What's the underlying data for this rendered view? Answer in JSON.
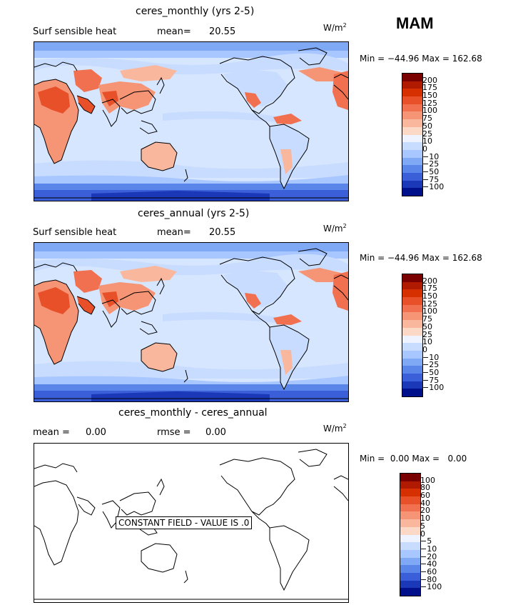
{
  "season": "MAM",
  "units": "W/m",
  "units_exp": "2",
  "panels": [
    {
      "title": "ceres_monthly (yrs 2-5)",
      "left_label": "Surf sensible heat",
      "stat_label": "mean=",
      "stat_value": "20.55",
      "min_label": "Min =",
      "min_value": "−44.96",
      "max_label": "Max =",
      "max_value": "162.68",
      "constant": false
    },
    {
      "title": "ceres_annual (yrs 2-5)",
      "left_label": "Surf sensible heat",
      "stat_label": "mean=",
      "stat_value": "20.55",
      "min_label": "Min =",
      "min_value": "−44.96",
      "max_label": "Max =",
      "max_value": "162.68",
      "constant": false
    },
    {
      "title": "ceres_monthly - ceres_annual",
      "left_label": "mean =",
      "left_value": "0.00",
      "stat_label": "rmse =",
      "stat_value": "0.00",
      "min_label": "Min =",
      "min_value": "0.00",
      "max_label": "Max =",
      "max_value": "0.00",
      "constant": true,
      "constant_text": "CONSTANT FIELD - VALUE IS .0"
    }
  ],
  "colorbar_top": {
    "ticks": [
      "200",
      "175",
      "150",
      "125",
      "100",
      "75",
      "50",
      "25",
      "10",
      "0",
      "−10",
      "−25",
      "−50",
      "−75",
      "−100"
    ],
    "colors": [
      "#7a0000",
      "#b01a00",
      "#d63000",
      "#e8502a",
      "#f07050",
      "#f59575",
      "#f9b89e",
      "#fcd9c6",
      "#eef3ff",
      "#c8dcff",
      "#a8c6ff",
      "#7fa8f5",
      "#5a86ea",
      "#3a5fd8",
      "#1a38b8",
      "#00108a"
    ]
  },
  "colorbar_diff": {
    "ticks": [
      "100",
      "80",
      "60",
      "40",
      "20",
      "10",
      "5",
      "0",
      "−5",
      "−10",
      "−20",
      "−40",
      "−60",
      "−80",
      "−100"
    ],
    "colors": [
      "#7a0000",
      "#b01a00",
      "#d63000",
      "#e8502a",
      "#f07050",
      "#f59575",
      "#f9b89e",
      "#fcd9c6",
      "#eef3ff",
      "#c8dcff",
      "#a8c6ff",
      "#7fa8f5",
      "#5a86ea",
      "#3a5fd8",
      "#1a38b8",
      "#00108a"
    ]
  },
  "chart_data": [
    {
      "type": "heatmap",
      "title": "ceres_monthly (yrs 2-5)",
      "variable": "Surf sensible heat",
      "mean": 20.55,
      "min": -44.96,
      "max": 162.68,
      "levels": [
        -100,
        -75,
        -50,
        -25,
        -10,
        0,
        10,
        25,
        50,
        75,
        100,
        125,
        150,
        175,
        200
      ]
    },
    {
      "type": "heatmap",
      "title": "ceres_annual (yrs 2-5)",
      "variable": "Surf sensible heat",
      "mean": 20.55,
      "min": -44.96,
      "max": 162.68,
      "levels": [
        -100,
        -75,
        -50,
        -25,
        -10,
        0,
        10,
        25,
        50,
        75,
        100,
        125,
        150,
        175,
        200
      ]
    },
    {
      "type": "heatmap",
      "title": "ceres_monthly - ceres_annual",
      "mean": 0.0,
      "rmse": 0.0,
      "min": 0.0,
      "max": 0.0,
      "levels": [
        -100,
        -80,
        -60,
        -40,
        -20,
        -10,
        -5,
        0,
        5,
        10,
        20,
        40,
        60,
        80,
        100
      ]
    }
  ]
}
